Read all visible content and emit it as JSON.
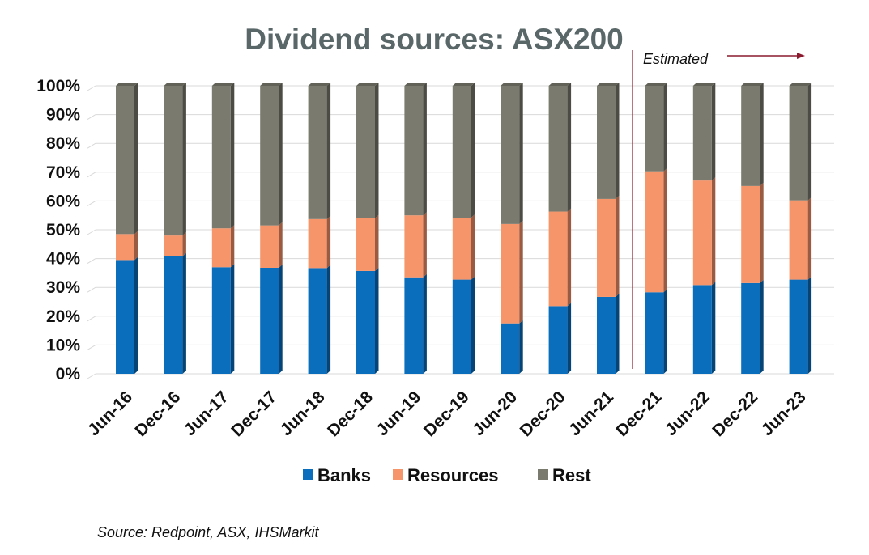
{
  "chart_data": {
    "type": "bar",
    "stacked": true,
    "title": "Dividend sources: ASX200",
    "categories": [
      "Jun-16",
      "Dec-16",
      "Jun-17",
      "Dec-17",
      "Jun-18",
      "Dec-18",
      "Jun-19",
      "Dec-19",
      "Jun-20",
      "Dec-20",
      "Jun-21",
      "Dec-21",
      "Jun-22",
      "Dec-22",
      "Jun-23"
    ],
    "series": [
      {
        "name": "Banks",
        "color": "#0a6ebd",
        "values": [
          39.5,
          40.8,
          37.0,
          36.8,
          36.7,
          35.7,
          33.5,
          32.7,
          17.5,
          23.5,
          26.7,
          28.3,
          30.8,
          31.5,
          32.7
        ]
      },
      {
        "name": "Resources",
        "color": "#f7956a",
        "values": [
          9.0,
          7.2,
          13.5,
          14.7,
          17.0,
          18.3,
          21.5,
          21.5,
          34.5,
          32.8,
          34.0,
          42.0,
          36.3,
          33.7,
          27.5
        ]
      },
      {
        "name": "Rest",
        "color": "#7a7a6e",
        "values": [
          51.5,
          52.0,
          49.5,
          48.5,
          46.3,
          46.0,
          45.0,
          45.8,
          48.0,
          43.7,
          39.3,
          29.7,
          32.9,
          34.8,
          39.8
        ]
      }
    ],
    "ylim": [
      0,
      100
    ],
    "yticks": [
      "0%",
      "10%",
      "20%",
      "30%",
      "40%",
      "50%",
      "60%",
      "70%",
      "80%",
      "90%",
      "100%"
    ],
    "grid": true,
    "legend": "bottom",
    "annotation": {
      "text": "Estimated",
      "after_category": "Jun-21"
    },
    "source": "Source: Redpoint, ASX, IHSMarkit"
  }
}
